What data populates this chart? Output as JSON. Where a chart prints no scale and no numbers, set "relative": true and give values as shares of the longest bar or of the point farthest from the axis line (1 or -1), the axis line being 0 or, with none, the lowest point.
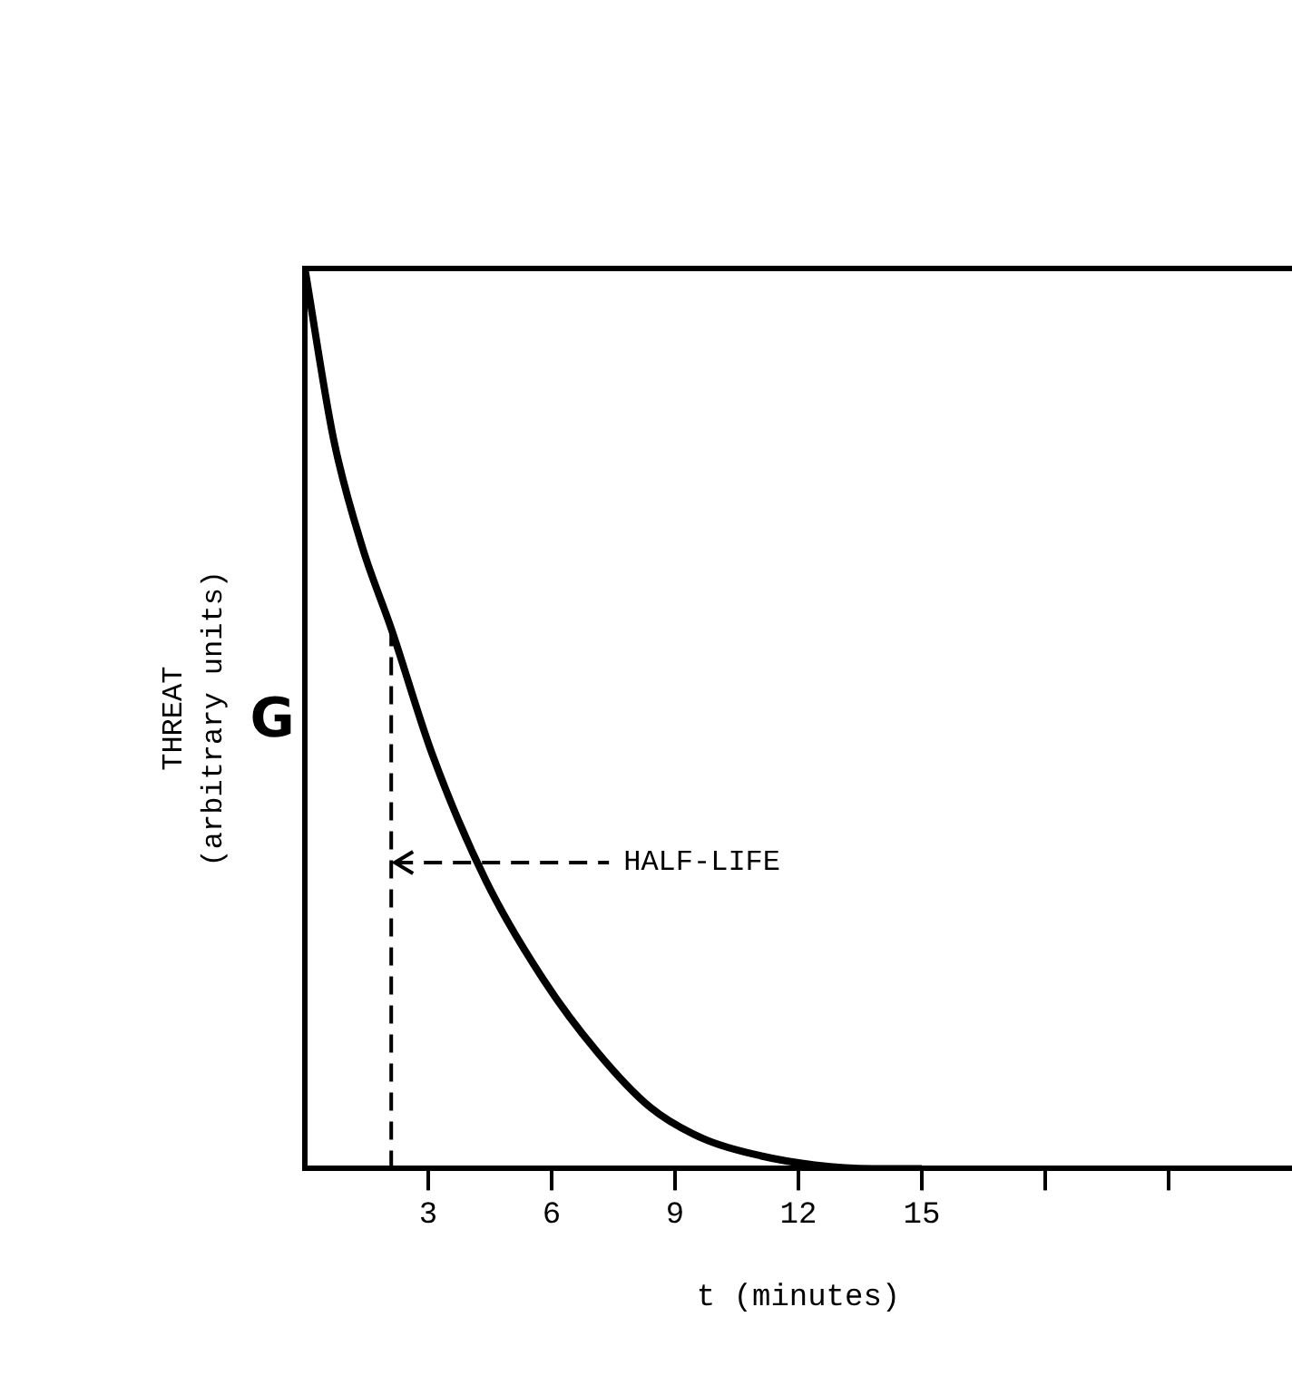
{
  "chart_data": {
    "type": "line",
    "relative": true,
    "xlabel": "t (minutes)",
    "ylabel": "THREAT\n(arbitrary units)",
    "x": [
      0,
      0.7,
      1.4,
      2.1,
      3.1,
      4.4,
      5.8,
      7.1,
      8.4,
      9.7,
      11.1,
      12.4,
      13.8,
      15
    ],
    "series": [
      {
        "color": "#000000",
        "values": [
          1.0,
          0.81,
          0.69,
          0.6,
          0.46,
          0.32,
          0.21,
          0.13,
          0.068,
          0.033,
          0.014,
          0.004,
          0,
          0
        ]
      }
    ],
    "xlim": [
      0,
      24
    ],
    "xticks": [
      3,
      6,
      9,
      12,
      15,
      {
        "value": 18,
        "label": null
      },
      {
        "value": 21,
        "label": null
      }
    ],
    "ref_lines": [
      {
        "axis": "x",
        "value": 2.1,
        "line_style": "dashed",
        "color": "#000000"
      }
    ],
    "annotations": [
      "G",
      {
        "text": "HALF-LIFE",
        "x": 2.1,
        "y": 0.34
      }
    ],
    "grid": false,
    "legend": false,
    "marker": "none",
    "line_style": "solid"
  }
}
